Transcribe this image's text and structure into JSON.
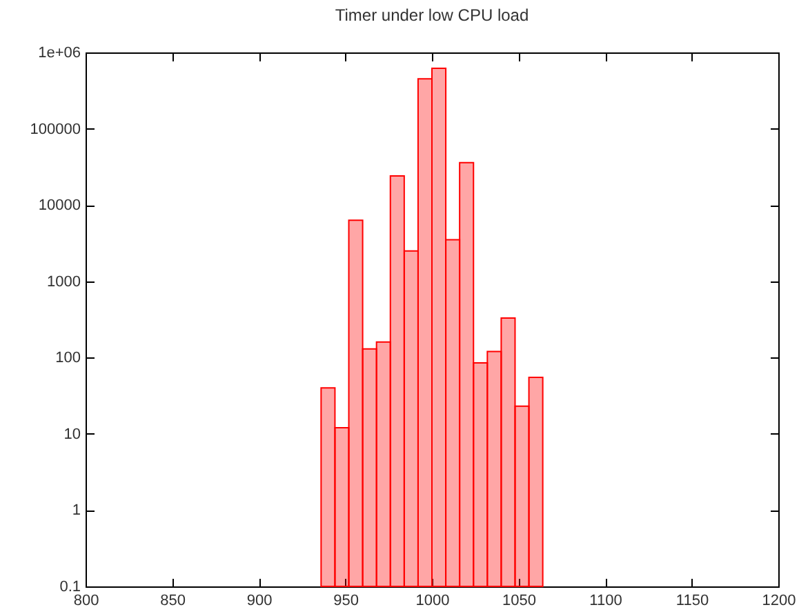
{
  "chart_data": {
    "type": "histogram",
    "title": "Timer under low CPU load",
    "bins": [
      936,
      944,
      952,
      960,
      968,
      976,
      984,
      992,
      1000,
      1008,
      1016,
      1024,
      1032,
      1040,
      1048,
      1056,
      1064
    ],
    "values": [
      40,
      12,
      6300,
      130,
      160,
      24000,
      2500,
      450000,
      620000,
      3500,
      36000,
      85,
      120,
      330,
      23,
      55
    ],
    "color": "#ff0000",
    "log": "y",
    "xlim": [
      800,
      1200
    ],
    "xticks": [
      800,
      850,
      900,
      950,
      1000,
      1050,
      1100,
      1150,
      1200
    ],
    "ylim": [
      0.1,
      1000000
    ],
    "yticks": [
      0.1,
      1,
      10,
      100,
      1000,
      10000,
      100000,
      {
        "value": 1000000,
        "label": "1e+06"
      }
    ],
    "grid": false
  }
}
